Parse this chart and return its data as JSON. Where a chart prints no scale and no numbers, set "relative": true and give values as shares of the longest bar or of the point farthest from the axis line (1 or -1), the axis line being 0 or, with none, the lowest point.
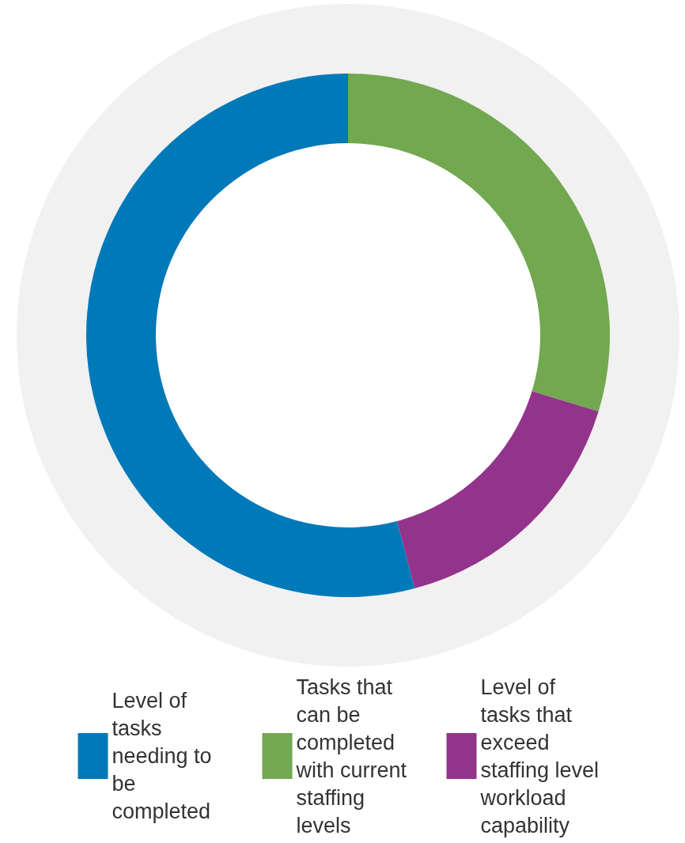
{
  "chart_data": {
    "type": "donut",
    "relative": true,
    "categories": [
      "Level of tasks needing to be completed",
      "Tasks that can be completed with current staffing levels",
      "Level of tasks that exceed staffing level workload capability"
    ],
    "values": [
      54.1,
      29.7,
      16.2
    ],
    "colors": [
      "#0079b9",
      "#72a84f",
      "#93338b"
    ],
    "legend": "bottom"
  }
}
